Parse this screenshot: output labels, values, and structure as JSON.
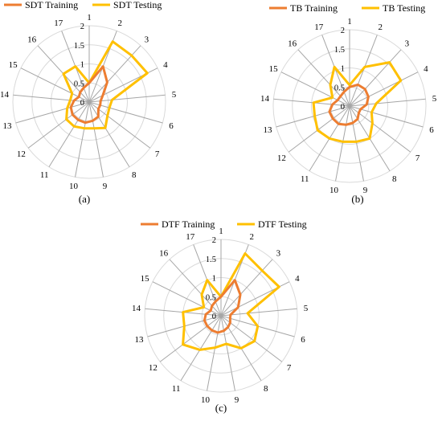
{
  "chart_data": [
    {
      "type": "radar",
      "panel_label": "(a)",
      "categories": [
        "1",
        "2",
        "3",
        "4",
        "5",
        "6",
        "7",
        "8",
        "9",
        "10",
        "11",
        "12",
        "13",
        "14",
        "15",
        "16",
        "17"
      ],
      "rlim": [
        0,
        2
      ],
      "ticks": [
        "0",
        "0.5",
        "1",
        "1.5",
        "2"
      ],
      "series": [
        {
          "name": "SDT Training",
          "color": "#ED7D31",
          "values": [
            0.5,
            1.0,
            0.7,
            0.4,
            0.3,
            0.3,
            0.3,
            0.45,
            0.5,
            0.55,
            0.55,
            0.55,
            0.5,
            0.4,
            0.3,
            0.35,
            0.4
          ]
        },
        {
          "name": "SDT Testing",
          "color": "#FFC000",
          "values": [
            0.5,
            1.7,
            1.65,
            1.7,
            0.6,
            0.55,
            0.6,
            0.8,
            0.7,
            0.7,
            0.75,
            0.75,
            0.6,
            0.5,
            0.5,
            1.0,
            1.0
          ]
        }
      ]
    },
    {
      "type": "radar",
      "panel_label": "(b)",
      "categories": [
        "1",
        "2",
        "3",
        "4",
        "5",
        "6",
        "7",
        "8",
        "9",
        "10",
        "11",
        "12",
        "13",
        "14",
        "15",
        "16",
        "17"
      ],
      "rlim": [
        0,
        2
      ],
      "ticks": [
        "0",
        "0.5",
        "1",
        "1.5",
        "2"
      ],
      "series": [
        {
          "name": "TB Training",
          "color": "#ED7D31",
          "values": [
            0.5,
            0.6,
            0.6,
            0.55,
            0.45,
            0.3,
            0.3,
            0.4,
            0.45,
            0.5,
            0.55,
            0.55,
            0.55,
            0.45,
            0.35,
            0.35,
            0.4
          ]
        },
        {
          "name": "TB Testing",
          "color": "#FFC000",
          "values": [
            0.55,
            1.1,
            1.55,
            1.5,
            0.7,
            0.6,
            0.75,
            1.0,
            0.95,
            0.95,
            1.0,
            1.05,
            0.95,
            0.95,
            0.5,
            0.75,
            1.1
          ]
        }
      ]
    },
    {
      "type": "radar",
      "panel_label": "(c)",
      "categories": [
        "1",
        "2",
        "3",
        "4",
        "5",
        "6",
        "7",
        "8",
        "9",
        "10",
        "11",
        "12",
        "13",
        "14",
        "15",
        "16",
        "17"
      ],
      "rlim": [
        0,
        2
      ],
      "ticks": [
        "0",
        "0.5",
        "1",
        "1.5",
        "2"
      ],
      "series": [
        {
          "name": "DTF Training",
          "color": "#ED7D31",
          "values": [
            0.5,
            1.0,
            0.75,
            0.5,
            0.25,
            0.25,
            0.3,
            0.35,
            0.4,
            0.45,
            0.45,
            0.45,
            0.45,
            0.4,
            0.3,
            0.35,
            0.4
          ]
        },
        {
          "name": "DTF Testing",
          "color": "#FFC000",
          "values": [
            0.5,
            1.75,
            1.6,
            1.7,
            0.7,
            1.0,
            1.1,
            1.0,
            0.75,
            0.85,
            1.05,
            1.25,
            1.0,
            1.0,
            0.5,
            0.75,
            1.0
          ]
        }
      ]
    }
  ]
}
